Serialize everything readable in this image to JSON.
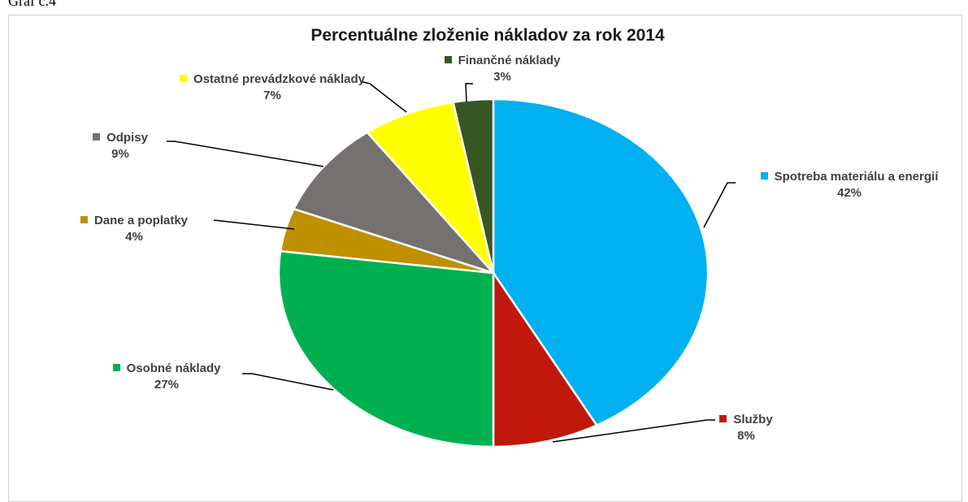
{
  "caption": "Graf č.4",
  "chart_data": {
    "type": "pie",
    "title": "Percentuálne zloženie nákladov za rok 2014",
    "categories": [
      "Spotreba materiálu a energií",
      "Služby",
      "Osobné náklady",
      "Dane a poplatky",
      "Odpisy",
      "Ostatné prevádzkové náklady",
      "Finančné náklady"
    ],
    "values": [
      42,
      8,
      27,
      4,
      9,
      7,
      3
    ],
    "value_labels": [
      "42%",
      "8%",
      "27%",
      "4%",
      "9%",
      "7%",
      "3%"
    ],
    "colors": [
      "#00b0f0",
      "#c0180c",
      "#00b050",
      "#bf9000",
      "#767171",
      "#ffff00",
      "#375623"
    ]
  }
}
